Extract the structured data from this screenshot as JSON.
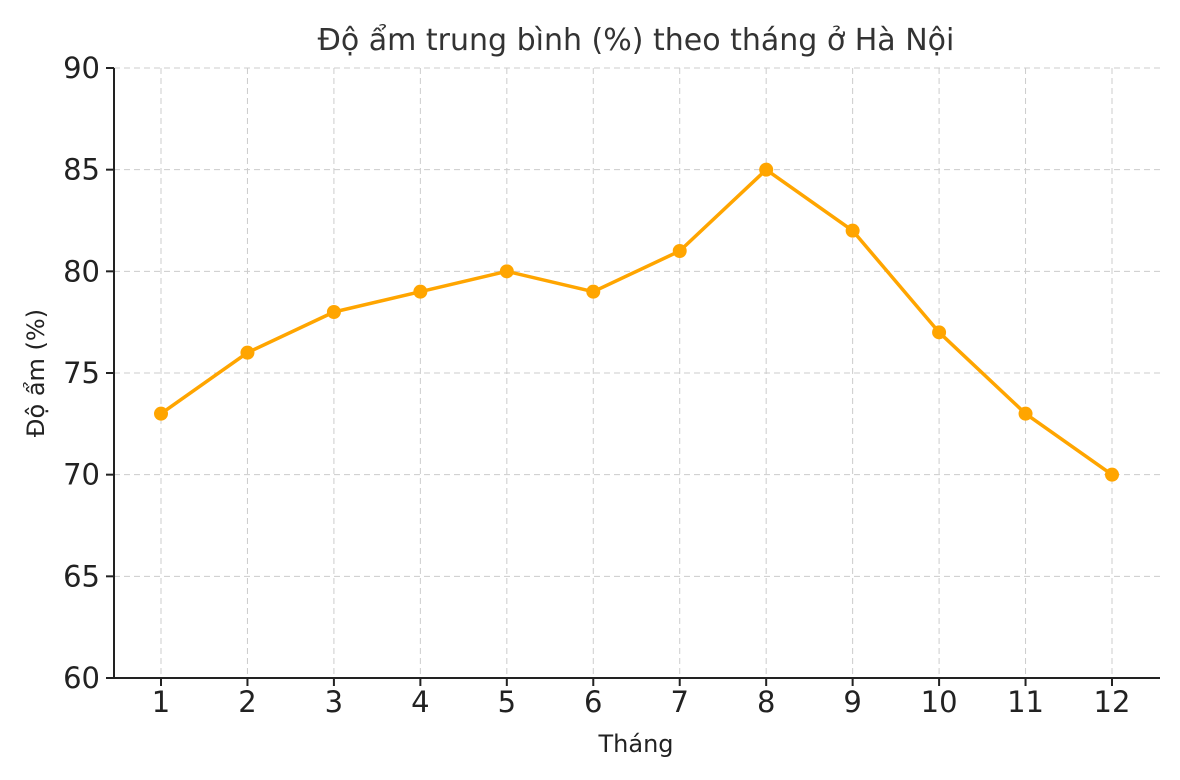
{
  "chart_data": {
    "type": "line",
    "title": "Độ ẩm trung bình (%) theo tháng ở Hà Nội",
    "xlabel": "Tháng",
    "ylabel": "Độ ẩm (%)",
    "x": [
      1,
      2,
      3,
      4,
      5,
      6,
      7,
      8,
      9,
      10,
      11,
      12
    ],
    "x_tick_labels": [
      "1",
      "2",
      "3",
      "4",
      "5",
      "6",
      "7",
      "8",
      "9",
      "10",
      "11",
      "12"
    ],
    "y_ticks": [
      60,
      65,
      70,
      75,
      80,
      85,
      90
    ],
    "y_tick_labels": [
      "60",
      "65",
      "70",
      "75",
      "80",
      "85",
      "90"
    ],
    "ylim": [
      60,
      90
    ],
    "grid": true,
    "series": [
      {
        "values": [
          73,
          76,
          78,
          79,
          80,
          79,
          81,
          85,
          82,
          77,
          73,
          70
        ],
        "color": "#FFA500"
      }
    ]
  }
}
